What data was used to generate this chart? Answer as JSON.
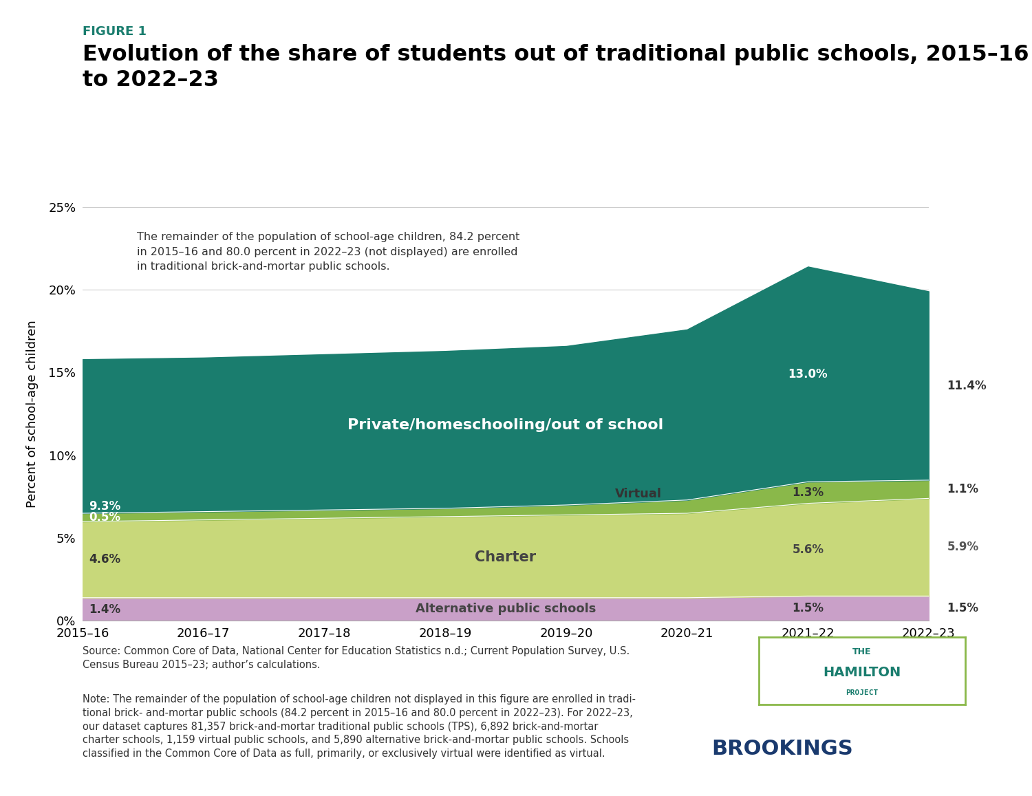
{
  "years": [
    0,
    1,
    2,
    3,
    4,
    5,
    6,
    7
  ],
  "year_labels": [
    "2015–16",
    "2016–17",
    "2017–18",
    "2018–19",
    "2019–20",
    "2020–21",
    "2021–22",
    "2022–23"
  ],
  "alternative": [
    1.4,
    1.4,
    1.4,
    1.4,
    1.4,
    1.4,
    1.5,
    1.5
  ],
  "charter": [
    4.6,
    4.7,
    4.8,
    4.9,
    5.0,
    5.1,
    5.6,
    5.9
  ],
  "virtual": [
    0.5,
    0.5,
    0.5,
    0.5,
    0.6,
    0.8,
    1.3,
    1.1
  ],
  "private": [
    9.3,
    9.3,
    9.4,
    9.5,
    9.6,
    10.3,
    13.0,
    11.4
  ],
  "color_alternative": "#c9a0c8",
  "color_charter": "#c8d87a",
  "color_virtual": "#8ab84a",
  "color_private": "#1a7d6e",
  "figure_label": "FIGURE 1",
  "title": "Evolution of the share of students out of traditional public schools, 2015–16\nto 2022–23",
  "ylabel": "Percent of school-age children",
  "annotation_text": "The remainder of the population of school-age children, 84.2 percent\nin 2015–16 and 80.0 percent in 2022–23 (not displayed) are enrolled\nin traditional brick-and-mortar public schools.",
  "source_text": "Source: Common Core of Data, National Center for Education Statistics n.d.; Current Population Survey, U.S.\nCensus Bureau 2015–23; author’s calculations.",
  "note_text": "Note: The remainder of the population of school-age children not displayed in this figure are enrolled in tradi-\ntional brick- and-mortar public schools (84.2 percent in 2015–16 and 80.0 percent in 2022–23). For 2022–23,\nour dataset captures 81,357 brick-and-mortar traditional public schools (TPS), 6,892 brick-and-mortar\ncharter schools, 1,159 virtual public schools, and 5,890 alternative brick-and-mortar public schools. Schools\nclassified in the Common Core of Data as full, primarily, or exclusively virtual were identified as virtual.",
  "ylim": [
    0,
    25
  ],
  "yticks": [
    0,
    5,
    10,
    15,
    20,
    25
  ],
  "ytick_labels": [
    "0%",
    "5%",
    "10%",
    "15%",
    "20%",
    "25%"
  ],
  "figure_label_color": "#1a7d6e",
  "title_color": "#000000",
  "background_color": "#ffffff",
  "hamilton_color": "#1a7d6e",
  "hamilton_border_color": "#8ab84a",
  "brookings_color": "#1a3a6e"
}
